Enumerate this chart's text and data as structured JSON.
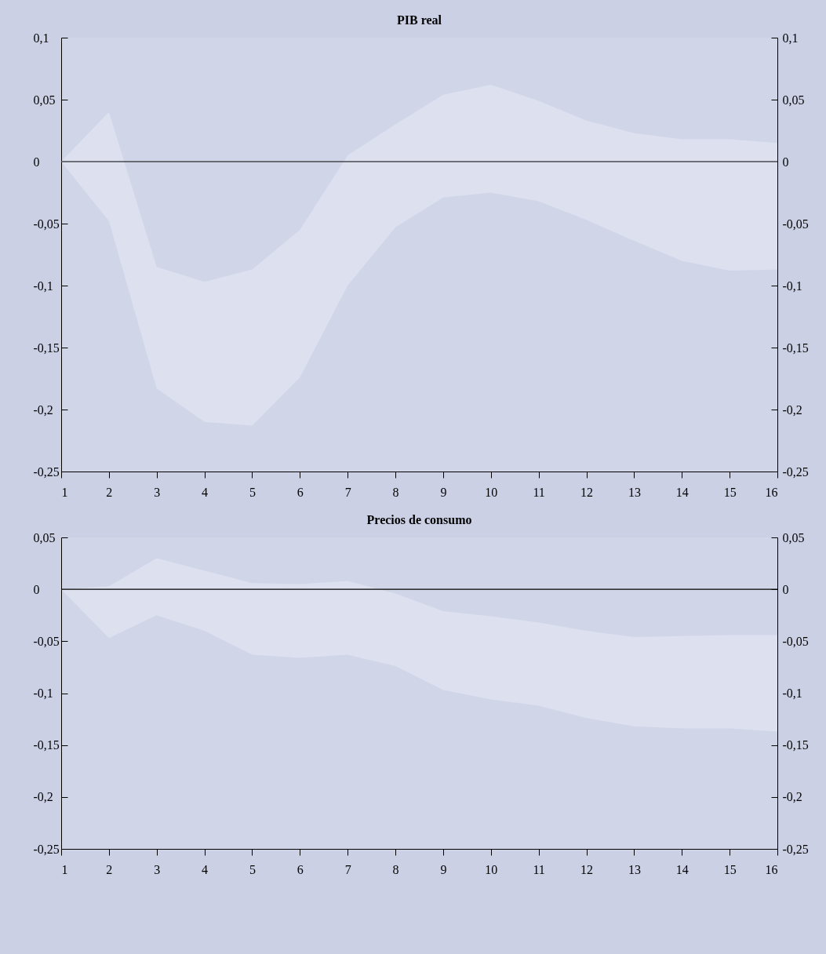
{
  "chart_data": [
    {
      "type": "area",
      "title": "PIB real",
      "x": [
        1,
        2,
        3,
        4,
        5,
        6,
        7,
        8,
        9,
        10,
        11,
        12,
        13,
        14,
        15,
        16
      ],
      "series": [
        {
          "type": "line",
          "color": "#dce0ef",
          "values": [
            null,
            null,
            null,
            null,
            null,
            null,
            null,
            null,
            null,
            null,
            null,
            null,
            null,
            null,
            null,
            null
          ],
          "lower": [
            0,
            -0.048,
            -0.183,
            -0.21,
            -0.213,
            -0.174,
            -0.1,
            -0.053,
            -0.029,
            -0.025,
            -0.032,
            -0.047,
            -0.064,
            -0.08,
            -0.088,
            -0.087
          ],
          "upper": [
            0,
            0.04,
            -0.085,
            -0.097,
            -0.087,
            -0.055,
            0.005,
            0.03,
            0.054,
            0.062,
            0.049,
            0.033,
            0.023,
            0.018,
            0.018,
            0.015
          ]
        }
      ],
      "xlim": [
        1,
        16
      ],
      "xticks": [
        1,
        2,
        3,
        4,
        5,
        6,
        7,
        8,
        9,
        10,
        11,
        12,
        13,
        14,
        15,
        16
      ],
      "ylim": [
        -0.25,
        0.1
      ],
      "yticks": [
        {
          "value": -0.25,
          "label": "-0,25"
        },
        {
          "value": -0.2,
          "label": "-0,2"
        },
        {
          "value": -0.15,
          "label": "-0,15"
        },
        {
          "value": -0.1,
          "label": "-0,1"
        },
        {
          "value": -0.05,
          "label": "-0,05"
        },
        {
          "value": 0,
          "label": "0"
        },
        {
          "value": 0.05,
          "label": "0,05"
        },
        {
          "value": 0.1,
          "label": "0,1"
        }
      ],
      "y2lim": [
        -0.25,
        0.1
      ],
      "y2ticks": [
        {
          "value": -0.25,
          "label": "-0,25"
        },
        {
          "value": -0.2,
          "label": "-0,2"
        },
        {
          "value": -0.15,
          "label": "-0,15"
        },
        {
          "value": -0.1,
          "label": "-0,1"
        },
        {
          "value": -0.05,
          "label": "-0,05"
        },
        {
          "value": 0,
          "label": "0"
        },
        {
          "value": 0.05,
          "label": "0,05"
        },
        {
          "value": 0.1,
          "label": "0,1"
        }
      ],
      "ref_lines": [
        {
          "axis": "y",
          "value": 0,
          "color": "#000000"
        }
      ],
      "grid": false,
      "legend": false
    },
    {
      "type": "area",
      "title": "Precios de consumo",
      "x": [
        1,
        2,
        3,
        4,
        5,
        6,
        7,
        8,
        9,
        10,
        11,
        12,
        13,
        14,
        15,
        16
      ],
      "series": [
        {
          "type": "line",
          "color": "#dce0ef",
          "values": [
            null,
            null,
            null,
            null,
            null,
            null,
            null,
            null,
            null,
            null,
            null,
            null,
            null,
            null,
            null,
            null
          ],
          "lower": [
            0,
            -0.047,
            -0.025,
            -0.04,
            -0.063,
            -0.066,
            -0.063,
            -0.074,
            -0.097,
            -0.106,
            -0.112,
            -0.124,
            -0.132,
            -0.134,
            -0.134,
            -0.137
          ],
          "upper": [
            0,
            0.003,
            0.03,
            0.018,
            0.006,
            0.005,
            0.008,
            -0.004,
            -0.021,
            -0.026,
            -0.032,
            -0.04,
            -0.046,
            -0.045,
            -0.044,
            -0.044
          ]
        }
      ],
      "xlim": [
        1,
        16
      ],
      "xticks": [
        1,
        2,
        3,
        4,
        5,
        6,
        7,
        8,
        9,
        10,
        11,
        12,
        13,
        14,
        15,
        16
      ],
      "ylim": [
        -0.25,
        0.05
      ],
      "yticks": [
        {
          "value": -0.25,
          "label": "-0,25"
        },
        {
          "value": -0.2,
          "label": "-0,2"
        },
        {
          "value": -0.15,
          "label": "-0,15"
        },
        {
          "value": -0.1,
          "label": "-0,1"
        },
        {
          "value": -0.05,
          "label": "-0,05"
        },
        {
          "value": 0,
          "label": "0"
        },
        {
          "value": 0.05,
          "label": "0,05"
        }
      ],
      "y2lim": [
        -0.25,
        0.05
      ],
      "y2ticks": [
        {
          "value": -0.25,
          "label": "-0,25"
        },
        {
          "value": -0.2,
          "label": "-0,2"
        },
        {
          "value": -0.15,
          "label": "-0,15"
        },
        {
          "value": -0.1,
          "label": "-0,1"
        },
        {
          "value": -0.05,
          "label": "-0,05"
        },
        {
          "value": 0,
          "label": "0"
        },
        {
          "value": 0.05,
          "label": "0,05"
        }
      ],
      "ref_lines": [
        {
          "axis": "y",
          "value": 0,
          "color": "#000000"
        }
      ],
      "grid": false,
      "legend": false
    }
  ]
}
